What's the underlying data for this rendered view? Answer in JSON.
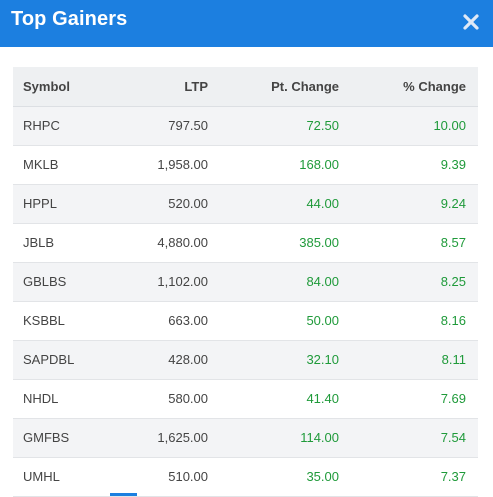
{
  "header": {
    "title": "Top Gainers",
    "close_icon": "close-icon",
    "bg_color": "#1c7fe0"
  },
  "table": {
    "columns": [
      "Symbol",
      "LTP",
      "Pt. Change",
      "% Change"
    ],
    "rows": [
      {
        "symbol": "RHPC",
        "ltp": "797.50",
        "pt_change": "72.50",
        "pct_change": "10.00"
      },
      {
        "symbol": "MKLB",
        "ltp": "1,958.00",
        "pt_change": "168.00",
        "pct_change": "9.39"
      },
      {
        "symbol": "HPPL",
        "ltp": "520.00",
        "pt_change": "44.00",
        "pct_change": "9.24"
      },
      {
        "symbol": "JBLB",
        "ltp": "4,880.00",
        "pt_change": "385.00",
        "pct_change": "8.57"
      },
      {
        "symbol": "GBLBS",
        "ltp": "1,102.00",
        "pt_change": "84.00",
        "pct_change": "8.25"
      },
      {
        "symbol": "KSBBL",
        "ltp": "663.00",
        "pt_change": "50.00",
        "pct_change": "8.16"
      },
      {
        "symbol": "SAPDBL",
        "ltp": "428.00",
        "pt_change": "32.10",
        "pct_change": "8.11"
      },
      {
        "symbol": "NHDL",
        "ltp": "580.00",
        "pt_change": "41.40",
        "pct_change": "7.69"
      },
      {
        "symbol": "GMFBS",
        "ltp": "1,625.00",
        "pt_change": "114.00",
        "pct_change": "7.54"
      },
      {
        "symbol": "UMHL",
        "ltp": "510.00",
        "pt_change": "35.00",
        "pct_change": "7.37"
      }
    ],
    "positive_color": "#1f9a3a"
  }
}
